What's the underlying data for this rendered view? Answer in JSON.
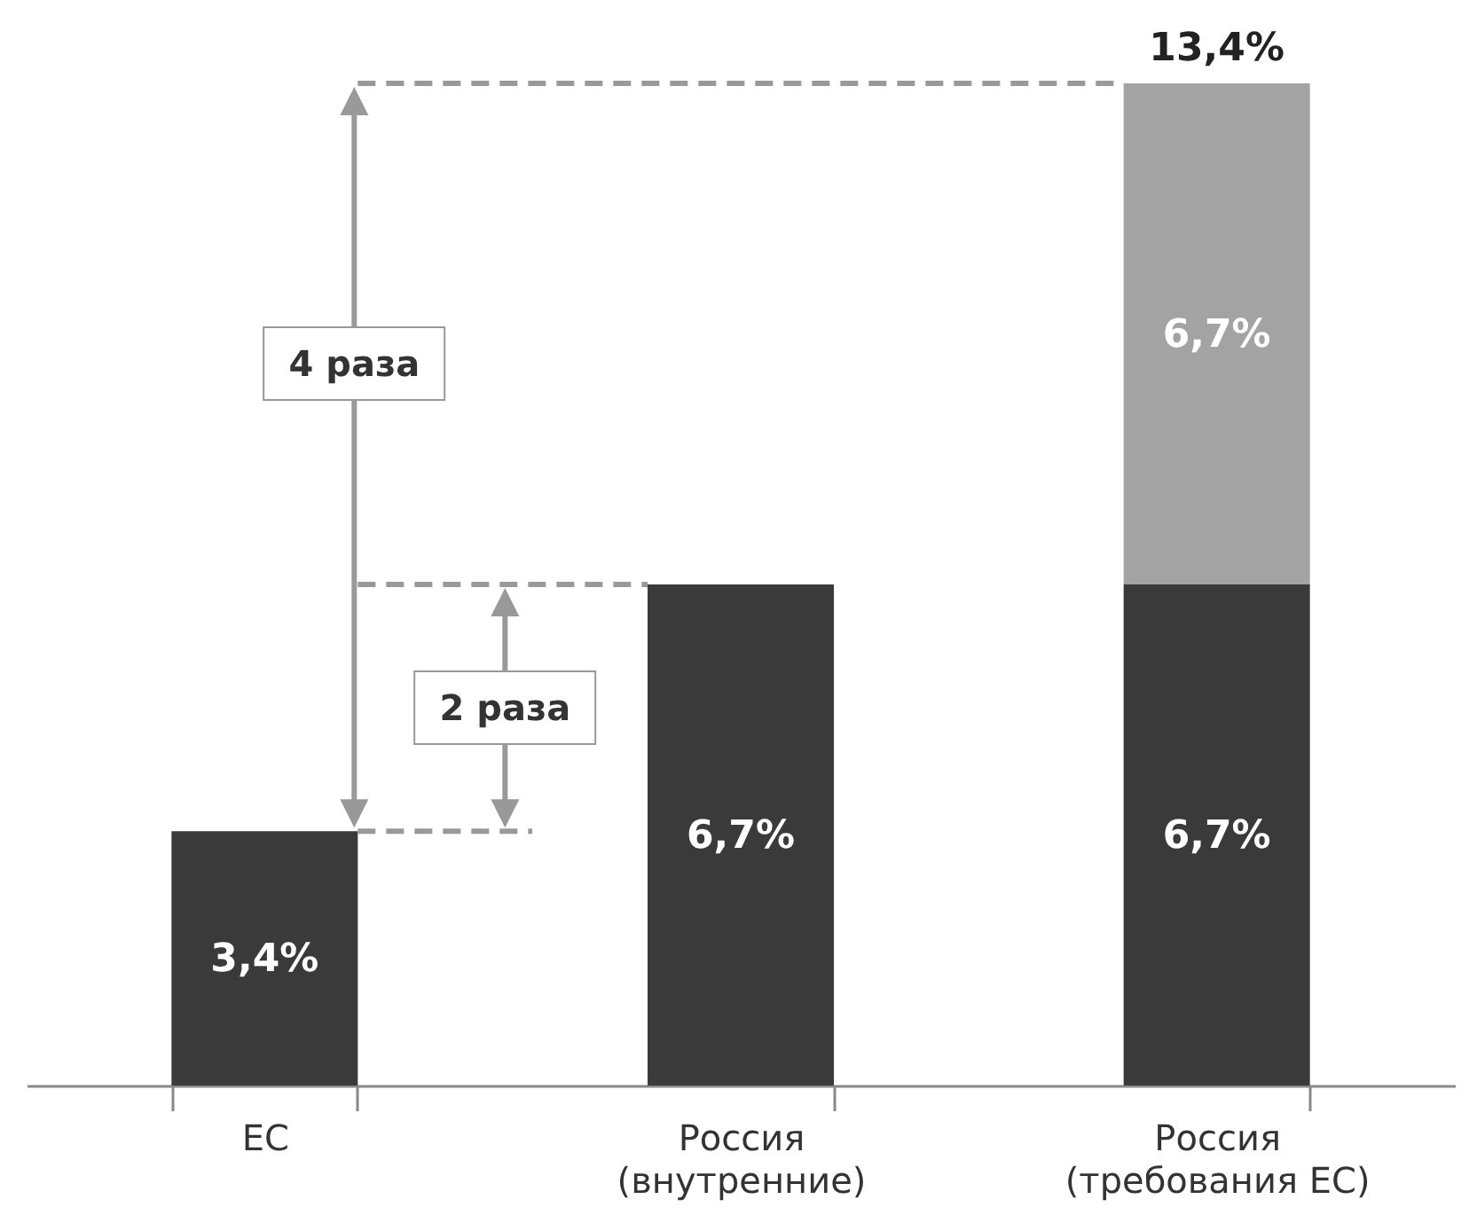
{
  "chart_data": {
    "type": "bar",
    "stacked": true,
    "legend": false,
    "grid": false,
    "categories": [
      "ЕС",
      "Россия\n(внутренние)",
      "Россия\n(требования ЕС)"
    ],
    "series": [
      {
        "color": "#3a3a3a",
        "values": [
          3.4,
          6.7,
          6.7
        ],
        "value_labels": [
          "3,4%",
          "6,7%",
          "6,7%"
        ]
      },
      {
        "color": "#a3a3a3",
        "values": [
          null,
          null,
          6.7
        ],
        "value_labels": [
          null,
          null,
          "6,7%"
        ]
      }
    ],
    "totals": [
      null,
      null,
      "13,4%"
    ],
    "annotations": [
      "4 раза",
      "2 раза"
    ]
  }
}
